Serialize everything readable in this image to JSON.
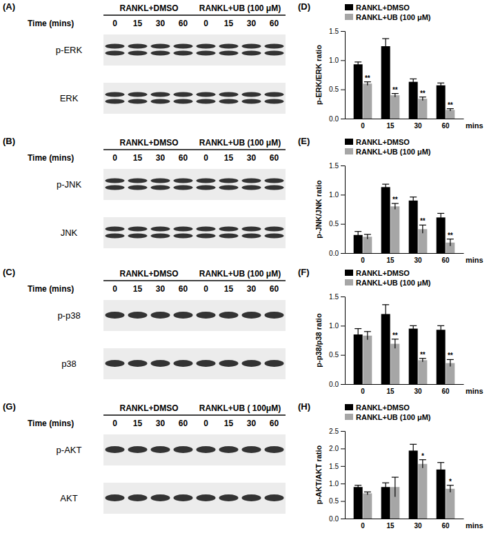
{
  "blots": [
    {
      "letter": "(A)",
      "groups": [
        "RANKL+DMSO",
        "RANKL+UB (100 μM)"
      ],
      "time_label": "Time (mins)",
      "times": [
        "0",
        "15",
        "30",
        "60",
        "0",
        "15",
        "30",
        "60"
      ],
      "rows": [
        {
          "name": "p-ERK",
          "bands": 2
        },
        {
          "name": "ERK",
          "bands": 2
        }
      ]
    },
    {
      "letter": "(B)",
      "groups": [
        "RANKL+DMSO",
        "RANKL+UB (100 μM)"
      ],
      "time_label": "Time (mins)",
      "times": [
        "0",
        "15",
        "30",
        "60",
        "0",
        "15",
        "30",
        "60"
      ],
      "rows": [
        {
          "name": "p-JNK",
          "bands": 2
        },
        {
          "name": "JNK",
          "bands": 2
        }
      ]
    },
    {
      "letter": "(C)",
      "groups": [
        "RANKL+DMSO",
        "RANKL+UB (100 μM)"
      ],
      "time_label": "Time (mins)",
      "times": [
        "0",
        "15",
        "30",
        "60",
        "0",
        "15",
        "30",
        "60"
      ],
      "rows": [
        {
          "name": "p-p38",
          "bands": 1
        },
        {
          "name": "p38",
          "bands": 1
        }
      ]
    },
    {
      "letter": "(G)",
      "groups": [
        "RANKL+DMSO",
        "RANKL+UB ( 100μM)"
      ],
      "time_label": "Time (mins)",
      "times": [
        "0",
        "15",
        "30",
        "60",
        "0",
        "15",
        "30",
        "60"
      ],
      "rows": [
        {
          "name": "p-AKT",
          "bands": 1
        },
        {
          "name": "AKT",
          "bands": 1
        }
      ]
    }
  ],
  "chart_data": [
    {
      "type": "bar",
      "title": "(D)",
      "x_label": "mins",
      "y_label": "p-ERK/ERK ratio",
      "categories": [
        "0",
        "15",
        "30",
        "60"
      ],
      "ylim": [
        0,
        1.5
      ],
      "yticks": [
        {
          "value": 0,
          "label": "0.0"
        },
        {
          "value": 0.5,
          "label": "0.5"
        },
        {
          "value": 1,
          "label": "1.0"
        },
        {
          "value": 1.5,
          "label": "1.5"
        }
      ],
      "legend": "top-left",
      "series": [
        {
          "name": "RANKL+DMSO",
          "color": "#000000",
          "values": [
            0.93,
            1.24,
            0.63,
            0.57
          ],
          "errors": [
            0.04,
            0.13,
            0.05,
            0.04
          ],
          "significance": [
            null,
            null,
            null,
            null
          ]
        },
        {
          "name": "RANKL+UB (100 μM)",
          "color": "#a6a6a6",
          "values": [
            0.6,
            0.4,
            0.34,
            0.15
          ],
          "errors": [
            0.03,
            0.03,
            0.03,
            0.02
          ],
          "significance": [
            "**",
            "**",
            "**",
            "**"
          ]
        }
      ]
    },
    {
      "type": "bar",
      "title": "(E)",
      "x_label": "mins",
      "y_label": "p-JNK/JNK ratio",
      "categories": [
        "0",
        "15",
        "30",
        "60"
      ],
      "ylim": [
        0,
        1.5
      ],
      "yticks": [
        {
          "value": 0,
          "label": "0.0"
        },
        {
          "value": 0.5,
          "label": "0.5"
        },
        {
          "value": 1,
          "label": "1.0"
        },
        {
          "value": 1.5,
          "label": "1.5"
        }
      ],
      "legend": "top-left",
      "series": [
        {
          "name": "RANKL+DMSO",
          "color": "#000000",
          "values": [
            0.31,
            1.13,
            0.9,
            0.61
          ],
          "errors": [
            0.06,
            0.05,
            0.06,
            0.07
          ],
          "significance": [
            null,
            null,
            null,
            null
          ]
        },
        {
          "name": "RANKL+UB (100 μM)",
          "color": "#a6a6a6",
          "values": [
            0.28,
            0.8,
            0.41,
            0.18
          ],
          "errors": [
            0.04,
            0.05,
            0.07,
            0.06
          ],
          "significance": [
            null,
            "**",
            "**",
            "**"
          ]
        }
      ]
    },
    {
      "type": "bar",
      "title": "(F)",
      "x_label": "mins",
      "y_label": "p-p38/p38 ratio",
      "categories": [
        "0",
        "15",
        "30",
        "60"
      ],
      "ylim": [
        0,
        1.5
      ],
      "yticks": [
        {
          "value": 0,
          "label": "0.0"
        },
        {
          "value": 0.5,
          "label": "0.5"
        },
        {
          "value": 1,
          "label": "1.0"
        },
        {
          "value": 1.5,
          "label": "1.5"
        }
      ],
      "legend": "top-left",
      "series": [
        {
          "name": "RANKL+DMSO",
          "color": "#000000",
          "values": [
            0.85,
            1.2,
            0.95,
            0.93
          ],
          "errors": [
            0.1,
            0.16,
            0.05,
            0.07
          ],
          "significance": [
            null,
            null,
            null,
            null
          ]
        },
        {
          "name": "RANKL+UB (100 μM)",
          "color": "#a6a6a6",
          "values": [
            0.83,
            0.69,
            0.41,
            0.36
          ],
          "errors": [
            0.07,
            0.08,
            0.03,
            0.06
          ],
          "significance": [
            null,
            "**",
            "**",
            "**"
          ]
        }
      ]
    },
    {
      "type": "bar",
      "title": "(H)",
      "x_label": "mins",
      "y_label": "p-AKT/AKT ratio",
      "categories": [
        "0",
        "15",
        "30",
        "60"
      ],
      "ylim": [
        0,
        2.5
      ],
      "yticks": [
        {
          "value": 0,
          "label": "0.0"
        },
        {
          "value": 0.5,
          "label": "0.5"
        },
        {
          "value": 1,
          "label": "1.0"
        },
        {
          "value": 1.5,
          "label": "1.5"
        },
        {
          "value": 2,
          "label": "2.0"
        },
        {
          "value": 2.5,
          "label": "2.5"
        }
      ],
      "legend": "top-left",
      "series": [
        {
          "name": "RANKL+DMSO",
          "color": "#000000",
          "values": [
            0.9,
            0.9,
            1.94,
            1.4
          ],
          "errors": [
            0.05,
            0.12,
            0.18,
            0.2
          ],
          "significance": [
            null,
            null,
            null,
            null
          ]
        },
        {
          "name": "RANKL+UB (100 μM)",
          "color": "#a6a6a6",
          "values": [
            0.72,
            0.9,
            1.56,
            0.85
          ],
          "errors": [
            0.04,
            0.28,
            0.12,
            0.1
          ],
          "significance": [
            null,
            null,
            "*",
            "*"
          ]
        }
      ]
    }
  ]
}
